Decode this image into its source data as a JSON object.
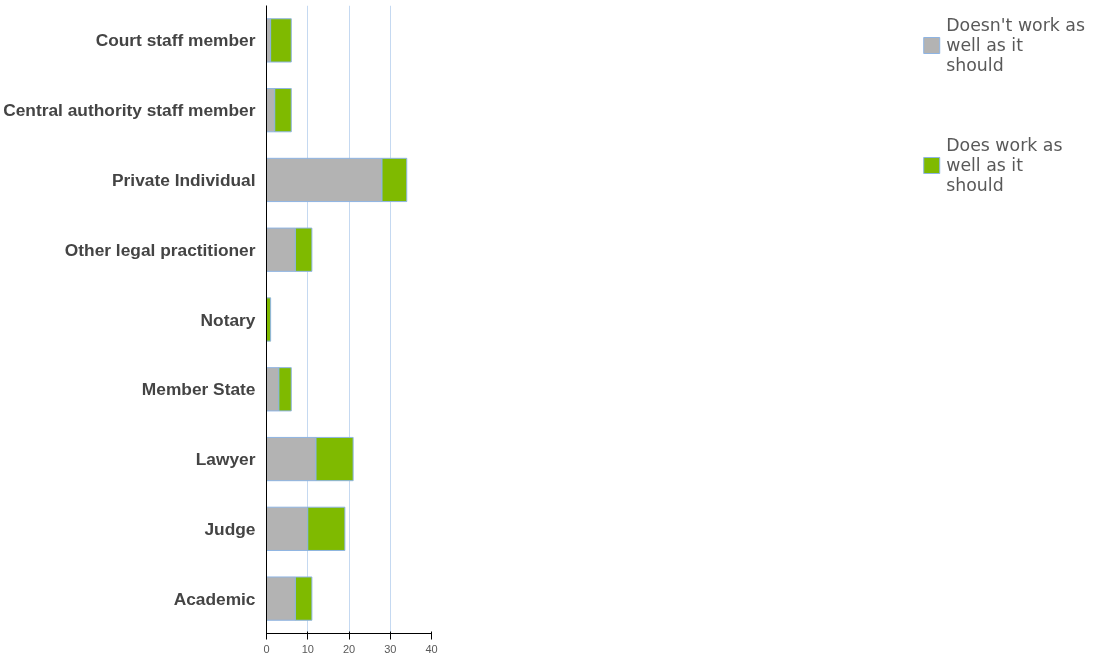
{
  "chart_data": {
    "type": "bar",
    "orientation": "horizontal",
    "stacked": true,
    "categories": [
      "Court staff member",
      "Central authority staff member",
      "Private Individual",
      "Other legal practitioner",
      "Notary",
      "Member State",
      "Lawyer",
      "Judge",
      "Academic"
    ],
    "series": [
      {
        "name": "Doesn't work as well as it should",
        "color": "#b3b3b3",
        "values": [
          1,
          2,
          28,
          7,
          0,
          3,
          12,
          10,
          7
        ]
      },
      {
        "name": "Does work as well as it should",
        "color": "#7fba00",
        "values": [
          5,
          4,
          6,
          4,
          1,
          3,
          9,
          9,
          4
        ]
      }
    ],
    "xlim": [
      0,
      40
    ],
    "xticks": [
      0,
      10,
      20,
      30,
      40
    ],
    "grid": "x",
    "legend": "right"
  }
}
